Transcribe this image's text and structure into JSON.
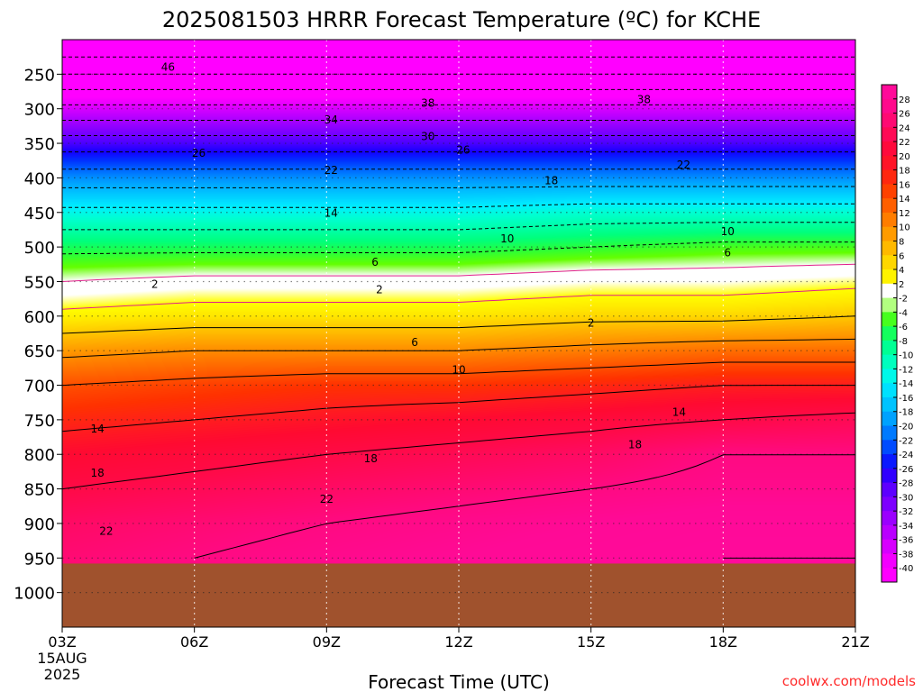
{
  "chart_data": {
    "type": "heatmap",
    "title": "2025081503 HRRR Forecast Temperature (ºC) for KCHE",
    "xlabel": "Forecast Time (UTC)",
    "ylabel": "",
    "credit": "coolwx.com/models",
    "x_ticks": [
      "03Z",
      "06Z",
      "09Z",
      "12Z",
      "15Z",
      "18Z",
      "21Z"
    ],
    "x_start_date": [
      "15AUG",
      "2025"
    ],
    "x_range_hours": [
      3,
      21
    ],
    "y_ticks": [
      250,
      300,
      350,
      400,
      450,
      500,
      550,
      600,
      650,
      700,
      750,
      800,
      850,
      900,
      950,
      1000
    ],
    "y_range": [
      200,
      1050
    ],
    "terrain_top_pressure": 958,
    "colorbar": {
      "labels": [
        28,
        26,
        24,
        22,
        20,
        18,
        16,
        14,
        12,
        10,
        8,
        6,
        4,
        2,
        -2,
        -4,
        -6,
        -8,
        -10,
        -12,
        -14,
        -16,
        -18,
        -20,
        -22,
        -24,
        -26,
        -28,
        -30,
        -32,
        -34,
        -36,
        -38,
        -40
      ],
      "colors": [
        {
          "t": -42,
          "c": "#ff00ff"
        },
        {
          "t": -40,
          "c": "#ff00ff"
        },
        {
          "t": -38,
          "c": "#e600ff"
        },
        {
          "t": -36,
          "c": "#c800ff"
        },
        {
          "t": -34,
          "c": "#aa00ff"
        },
        {
          "t": -32,
          "c": "#8c00ff"
        },
        {
          "t": -30,
          "c": "#6e00ff"
        },
        {
          "t": -28,
          "c": "#4b00ff"
        },
        {
          "t": -26,
          "c": "#1400ff"
        },
        {
          "t": -24,
          "c": "#0032ff"
        },
        {
          "t": -22,
          "c": "#0064ff"
        },
        {
          "t": -20,
          "c": "#0090ff"
        },
        {
          "t": -18,
          "c": "#00b4ff"
        },
        {
          "t": -16,
          "c": "#00d2ff"
        },
        {
          "t": -14,
          "c": "#00f0ff"
        },
        {
          "t": -12,
          "c": "#00ffd2"
        },
        {
          "t": -10,
          "c": "#00ffaa"
        },
        {
          "t": -8,
          "c": "#00ff7d"
        },
        {
          "t": -6,
          "c": "#28ff3c"
        },
        {
          "t": -4,
          "c": "#64ff00"
        },
        {
          "t": -2,
          "c": "#ffffff"
        },
        {
          "t": 0,
          "c": "#ffffff"
        },
        {
          "t": 2,
          "c": "#ffff00"
        },
        {
          "t": 4,
          "c": "#ffe600"
        },
        {
          "t": 6,
          "c": "#ffc800"
        },
        {
          "t": 8,
          "c": "#ffaa00"
        },
        {
          "t": 10,
          "c": "#ff8c00"
        },
        {
          "t": 12,
          "c": "#ff6e00"
        },
        {
          "t": 14,
          "c": "#ff5000"
        },
        {
          "t": 16,
          "c": "#ff3200"
        },
        {
          "t": 18,
          "c": "#ff1e1e"
        },
        {
          "t": 20,
          "c": "#ff0a32"
        },
        {
          "t": 22,
          "c": "#ff0a46"
        },
        {
          "t": 24,
          "c": "#ff0a64"
        },
        {
          "t": 26,
          "c": "#ff0a82"
        },
        {
          "t": 28,
          "c": "#ff0a96"
        },
        {
          "t": 32,
          "c": "#ff0aa0"
        }
      ]
    },
    "profile": {
      "levels": [
        200,
        250,
        300,
        350,
        400,
        450,
        500,
        550,
        600,
        650,
        700,
        750,
        800,
        850,
        900,
        950
      ],
      "times": [
        3,
        6,
        9,
        12,
        15,
        18,
        21
      ],
      "temps_c": [
        [
          -54,
          -54,
          -54,
          -54,
          -54,
          -54,
          -54
        ],
        [
          -46,
          -46,
          -46,
          -46,
          -46,
          -46,
          -46
        ],
        [
          -37,
          -37,
          -37,
          -37,
          -37,
          -37,
          -37
        ],
        [
          -28,
          -28,
          -28,
          -28,
          -28,
          -28,
          -28
        ],
        [
          -20,
          -20,
          -20,
          -20,
          -20,
          -20,
          -20
        ],
        [
          -13,
          -13,
          -13,
          -13,
          -12,
          -12,
          -12
        ],
        [
          -7,
          -7,
          -7,
          -7,
          -6,
          -5,
          -5
        ],
        [
          -2,
          -1,
          -1,
          -1,
          0,
          0,
          1
        ],
        [
          3,
          4,
          4,
          4,
          5,
          5,
          6
        ],
        [
          9,
          10,
          10,
          10,
          11,
          12,
          12
        ],
        [
          14,
          15,
          16,
          16,
          17,
          18,
          18
        ],
        [
          17,
          18,
          19,
          20,
          21,
          22,
          23
        ],
        [
          20,
          21,
          22,
          23,
          24,
          26,
          26
        ],
        [
          22,
          23,
          24,
          25,
          26,
          27,
          27
        ],
        [
          24,
          25,
          26,
          27,
          28,
          29,
          29
        ],
        [
          25,
          26,
          27,
          28,
          29,
          30,
          30
        ]
      ]
    },
    "contour_labels": [
      {
        "value": "46",
        "t": 5.4,
        "p": 240
      },
      {
        "value": "38",
        "t": 11.3,
        "p": 292
      },
      {
        "value": "38",
        "t": 16.2,
        "p": 287
      },
      {
        "value": "34",
        "t": 9.1,
        "p": 316
      },
      {
        "value": "30",
        "t": 11.3,
        "p": 340
      },
      {
        "value": "26",
        "t": 6.1,
        "p": 364
      },
      {
        "value": "26",
        "t": 12.1,
        "p": 360
      },
      {
        "value": "22",
        "t": 9.1,
        "p": 389
      },
      {
        "value": "22",
        "t": 17.1,
        "p": 381
      },
      {
        "value": "18",
        "t": 14.1,
        "p": 404
      },
      {
        "value": "14",
        "t": 9.1,
        "p": 451
      },
      {
        "value": "10",
        "t": 13.1,
        "p": 488
      },
      {
        "value": "10",
        "t": 18.1,
        "p": 478
      },
      {
        "value": "6",
        "t": 10.1,
        "p": 522
      },
      {
        "value": "6",
        "t": 18.1,
        "p": 508
      },
      {
        "value": "2",
        "t": 5.1,
        "p": 554
      },
      {
        "value": "2",
        "t": 10.2,
        "p": 562
      },
      {
        "value": "2",
        "t": 15.0,
        "p": 610
      },
      {
        "value": "6",
        "t": 11.0,
        "p": 638
      },
      {
        "value": "10",
        "t": 12.0,
        "p": 678
      },
      {
        "value": "14",
        "t": 3.8,
        "p": 763
      },
      {
        "value": "14",
        "t": 17.0,
        "p": 739
      },
      {
        "value": "18",
        "t": 3.8,
        "p": 827
      },
      {
        "value": "18",
        "t": 16.0,
        "p": 786
      },
      {
        "value": "18",
        "t": 10.0,
        "p": 806
      },
      {
        "value": "22",
        "t": 9.0,
        "p": 865
      },
      {
        "value": "22",
        "t": 4.0,
        "p": 911
      }
    ]
  }
}
